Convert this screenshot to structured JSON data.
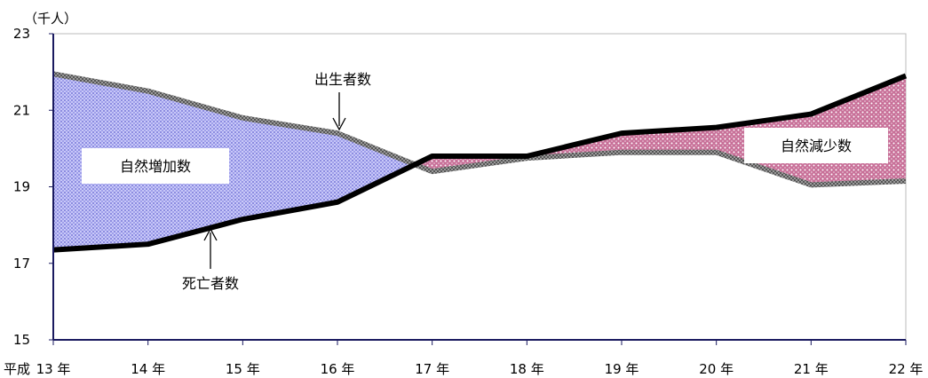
{
  "chart_data": {
    "type": "area",
    "unit_label": "（千人）",
    "x_prefix": "平成",
    "categories": [
      "13 年",
      "14 年",
      "15 年",
      "16 年",
      "17 年",
      "18 年",
      "19 年",
      "20 年",
      "21 年",
      "22 年"
    ],
    "series": [
      {
        "name": "出生者数",
        "values": [
          21.95,
          21.5,
          20.8,
          20.4,
          19.4,
          19.75,
          19.9,
          19.9,
          19.05,
          19.15
        ]
      },
      {
        "name": "死亡者数",
        "values": [
          17.35,
          17.5,
          18.15,
          18.6,
          19.8,
          19.8,
          20.4,
          20.55,
          20.9,
          21.9
        ]
      }
    ],
    "regions": [
      "自然増加数",
      "自然減少数"
    ],
    "ylim": [
      15,
      23
    ],
    "yticks": [
      15,
      17,
      19,
      21,
      23
    ],
    "colors": {
      "birth_line": "#808080",
      "death_line": "#000000",
      "increase_fill": "#a8a8f0",
      "decrease_fill": "#d890b0",
      "axis": "#1a1a60"
    }
  }
}
